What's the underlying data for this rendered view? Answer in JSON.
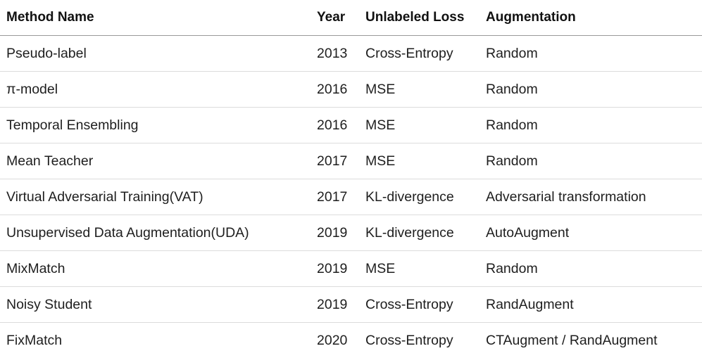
{
  "table": {
    "headers": [
      "Method Name",
      "Year",
      "Unlabeled Loss",
      "Augmentation"
    ],
    "rows": [
      [
        "Pseudo-label",
        "2013",
        "Cross-Entropy",
        "Random"
      ],
      [
        "π-model",
        "2016",
        "MSE",
        "Random"
      ],
      [
        "Temporal Ensembling",
        "2016",
        "MSE",
        "Random"
      ],
      [
        "Mean Teacher",
        "2017",
        "MSE",
        "Random"
      ],
      [
        "Virtual Adversarial Training(VAT)",
        "2017",
        "KL-divergence",
        "Adversarial transformation"
      ],
      [
        "Unsupervised Data Augmentation(UDA)",
        "2019",
        "KL-divergence",
        "AutoAugment"
      ],
      [
        "MixMatch",
        "2019",
        "MSE",
        "Random"
      ],
      [
        "Noisy Student",
        "2019",
        "Cross-Entropy",
        "RandAugment"
      ],
      [
        "FixMatch",
        "2020",
        "Cross-Entropy",
        "CTAugment / RandAugment"
      ]
    ]
  }
}
